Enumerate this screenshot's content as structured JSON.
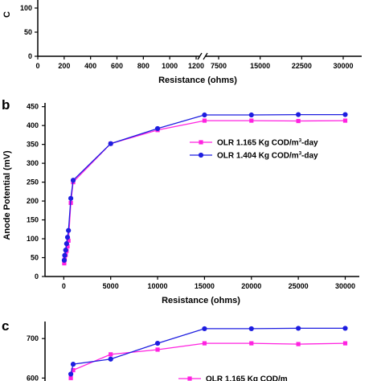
{
  "chart_data": [
    {
      "type": "line",
      "partial": true,
      "visible_ylabel_fragment": "C",
      "y_ticks": [
        "100",
        "50",
        "0"
      ],
      "ylim": [
        0,
        120
      ],
      "x_ticks_left": [
        "0",
        "200",
        "400",
        "600",
        "800",
        "1000",
        "1200"
      ],
      "x_ticks_right": [
        "7500",
        "15000",
        "22500",
        "30000"
      ],
      "axis_break": true,
      "xlabel": "Resistance (ohms)"
    },
    {
      "type": "line",
      "panel_label": "b",
      "xlabel": "Resistance (ohms)",
      "ylabel": "Anode Potential (mV)",
      "xlim": [
        -2000,
        31500
      ],
      "ylim": [
        0,
        460
      ],
      "x_ticks": [
        "0",
        "5000",
        "10000",
        "15000",
        "20000",
        "25000",
        "30000"
      ],
      "y_ticks": [
        "0",
        "50",
        "100",
        "150",
        "200",
        "250",
        "300",
        "350",
        "400",
        "450"
      ],
      "legend_position": "right",
      "series": [
        {
          "name_prefix": "OLR 1.165 Kg COD/m",
          "name_sup": "3",
          "name_suffix": "-day",
          "color": "#ff22e0",
          "marker": "square",
          "points": [
            [
              50,
              35
            ],
            [
              100,
              45
            ],
            [
              200,
              57
            ],
            [
              300,
              68
            ],
            [
              400,
              80
            ],
            [
              500,
              95
            ],
            [
              750,
              195
            ],
            [
              1000,
              250
            ],
            [
              5000,
              352
            ],
            [
              10000,
              388
            ],
            [
              15000,
              413
            ],
            [
              20000,
              413
            ],
            [
              25000,
              412
            ],
            [
              30000,
              413
            ]
          ]
        },
        {
          "name_prefix": "OLR 1.404 Kg COD/m",
          "name_sup": "3",
          "name_suffix": "-day",
          "color": "#1d1de0",
          "marker": "circle",
          "points": [
            [
              50,
              43
            ],
            [
              100,
              56
            ],
            [
              200,
              70
            ],
            [
              300,
              87
            ],
            [
              400,
              104
            ],
            [
              500,
              122
            ],
            [
              750,
              207
            ],
            [
              1000,
              255
            ],
            [
              5000,
              352
            ],
            [
              10000,
              392
            ],
            [
              15000,
              428
            ],
            [
              20000,
              428
            ],
            [
              25000,
              429
            ],
            [
              30000,
              429
            ]
          ]
        }
      ]
    },
    {
      "type": "line",
      "panel_label": "c",
      "partial": true,
      "y_ticks": [
        "700",
        "600"
      ],
      "ylim": [
        560,
        735
      ],
      "series": [
        {
          "legend_visible_fragment": "OLR 1.165 Kg COD/m",
          "color": "#ff22e0",
          "marker": "square",
          "points": [
            [
              750,
              600
            ],
            [
              1000,
              620
            ],
            [
              5000,
              660
            ],
            [
              10000,
              672
            ],
            [
              15000,
              688
            ],
            [
              20000,
              688
            ],
            [
              25000,
              686
            ],
            [
              30000,
              688
            ]
          ]
        },
        {
          "color": "#1d1de0",
          "marker": "circle",
          "points": [
            [
              750,
              610
            ],
            [
              1000,
              635
            ],
            [
              5000,
              648
            ],
            [
              10000,
              688
            ],
            [
              15000,
              725
            ],
            [
              20000,
              725
            ],
            [
              25000,
              726
            ],
            [
              30000,
              726
            ]
          ]
        }
      ]
    }
  ]
}
